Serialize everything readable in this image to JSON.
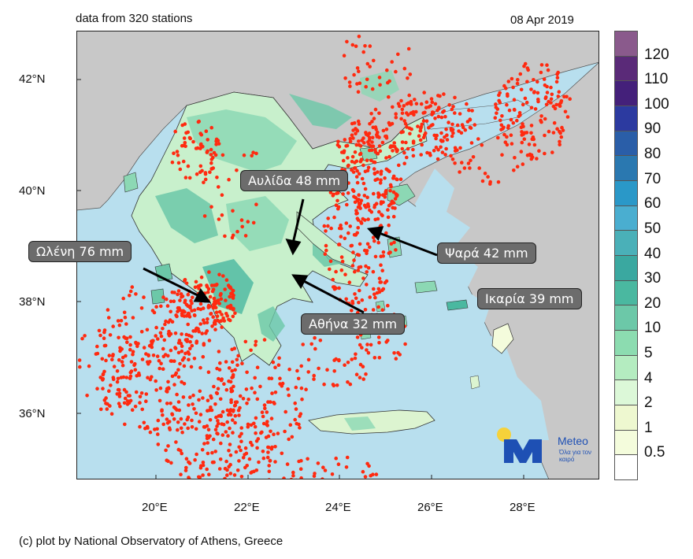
{
  "header": {
    "stations": "data from 320 stations",
    "date": "08 Apr 2019"
  },
  "footer": {
    "credit": "(c) plot by National Observatory of Athens, Greece"
  },
  "axes": {
    "lat_labels": [
      "42°N",
      "40°N",
      "38°N",
      "36°N"
    ],
    "lon_labels": [
      "20°E",
      "22°E",
      "24°E",
      "26°E",
      "28°E"
    ]
  },
  "annotations": [
    {
      "text": "Αυλίδα 48 mm",
      "station": "Avlida",
      "value_mm": 48
    },
    {
      "text": "Ωλένη 76 mm",
      "station": "Oleni",
      "value_mm": 76
    },
    {
      "text": "Ψαρά 42 mm",
      "station": "Psara",
      "value_mm": 42
    },
    {
      "text": "Ικαρία 39 mm",
      "station": "Ikaria",
      "value_mm": 39
    },
    {
      "text": "Αθήνα 32 mm",
      "station": "Athens",
      "value_mm": 32
    }
  ],
  "colorbar": {
    "labels": [
      "120",
      "110",
      "100",
      "90",
      "80",
      "70",
      "60",
      "50",
      "40",
      "30",
      "20",
      "10",
      "5",
      "4",
      "2",
      "1",
      "0.5"
    ],
    "colors": [
      "#8a5a8c",
      "#5a2a78",
      "#44207a",
      "#2c3aa0",
      "#2a5ea8",
      "#2a78b0",
      "#2a98c8",
      "#4aaed0",
      "#4ab0b8",
      "#3aa8a0",
      "#4ab8a0",
      "#6cc8a8",
      "#8cdcb0",
      "#b4ecc0",
      "#dcf8d8",
      "#eef8d0",
      "#f4fcdc",
      "#ffffff"
    ]
  },
  "logo": {
    "name": "Meteo",
    "tagline": "Όλα για τον καιρό"
  },
  "colors": {
    "sea": "#b8dfee",
    "land_dry": "#c8c8c8",
    "rain_dots": "#ff2a10",
    "greece_light": "#c8f0cc",
    "greece_mid": "#8cd8b4"
  }
}
